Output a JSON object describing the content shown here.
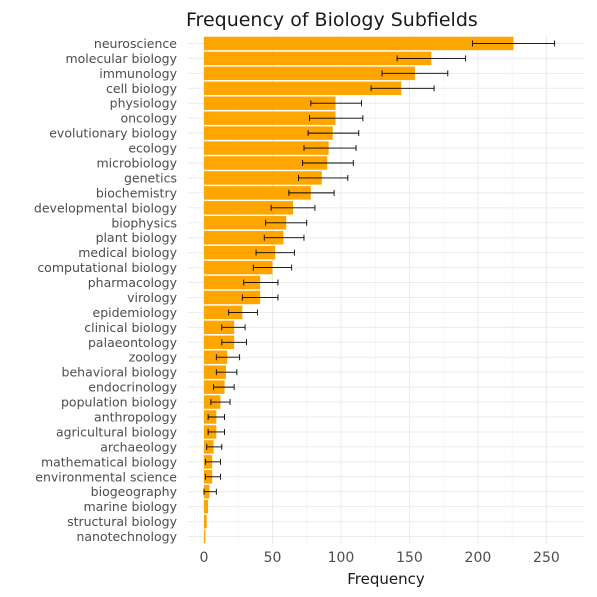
{
  "chart_data": {
    "type": "bar",
    "orientation": "horizontal",
    "title": "Frequency of Biology Subfields",
    "xlabel": "Frequency",
    "ylabel": "",
    "xlim": [
      0,
      275
    ],
    "xticks": [
      0,
      50,
      100,
      150,
      200,
      250
    ],
    "grid": true,
    "bar_color": "#FFA500",
    "error_bar_color": "#000000",
    "categories": [
      "neuroscience",
      "molecular biology",
      "immunology",
      "cell biology",
      "physiology",
      "oncology",
      "evolutionary biology",
      "ecology",
      "microbiology",
      "genetics",
      "biochemistry",
      "developmental biology",
      "biophysics",
      "plant biology",
      "medical biology",
      "computational biology",
      "pharmacology",
      "virology",
      "epidemiology",
      "clinical biology",
      "palaeontology",
      "zoology",
      "behavioral biology",
      "endocrinology",
      "population biology",
      "anthropology",
      "agricultural biology",
      "archaeology",
      "mathematical biology",
      "environmental science",
      "biogeography",
      "marine biology",
      "structural biology",
      "nanotechnology"
    ],
    "values": [
      226,
      166,
      154,
      144,
      96,
      96,
      94,
      91,
      90,
      86,
      78,
      65,
      60,
      58,
      52,
      50,
      41,
      41,
      28,
      22,
      22,
      17,
      16,
      15,
      12,
      9,
      9,
      7,
      6,
      6,
      4,
      3,
      2,
      1
    ],
    "error_low": [
      196,
      141,
      130,
      122,
      78,
      77,
      76,
      73,
      72,
      69,
      62,
      49,
      45,
      44,
      38,
      36,
      29,
      28,
      18,
      13,
      13,
      9,
      9,
      7,
      5,
      3,
      3,
      2,
      1,
      1,
      0,
      null,
      null,
      null
    ],
    "error_high": [
      256,
      191,
      178,
      168,
      115,
      116,
      113,
      111,
      109,
      105,
      95,
      81,
      75,
      73,
      66,
      64,
      54,
      54,
      39,
      30,
      31,
      26,
      24,
      22,
      19,
      15,
      15,
      13,
      12,
      12,
      9,
      null,
      null,
      null
    ]
  }
}
